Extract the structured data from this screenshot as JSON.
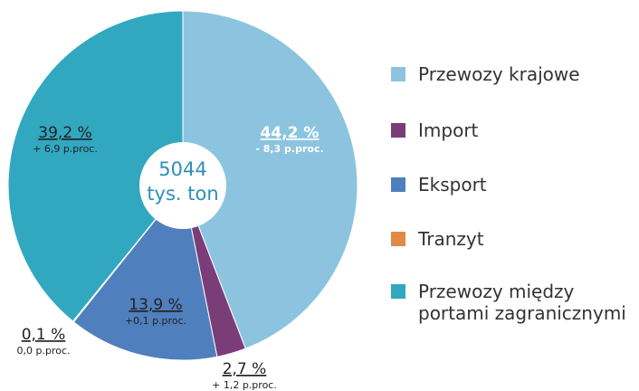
{
  "chart_data": {
    "type": "pie",
    "categories": [
      "Przewozy krajowe",
      "Import",
      "Eksport",
      "Tranzyt",
      "Przewozy między portami zagranicznymi"
    ],
    "values": [
      44.2,
      2.7,
      13.9,
      0.1,
      39.2
    ],
    "value_labels": [
      "44,2 %",
      "2,7 %",
      "13,9 %",
      "0,1 %",
      "39,2 %"
    ],
    "change_labels": [
      "- 8,3 p.proc.",
      "+ 1,2 p.proc.",
      "+0,1 p.proc.",
      "0,0 p.proc.",
      "+ 6,9 p.proc."
    ],
    "colors": [
      "#8cc4e0",
      "#7b3d78",
      "#4f7fbd",
      "#e08a45",
      "#31a8c0"
    ],
    "total": 5044,
    "total_unit": "tys. ton"
  }
}
